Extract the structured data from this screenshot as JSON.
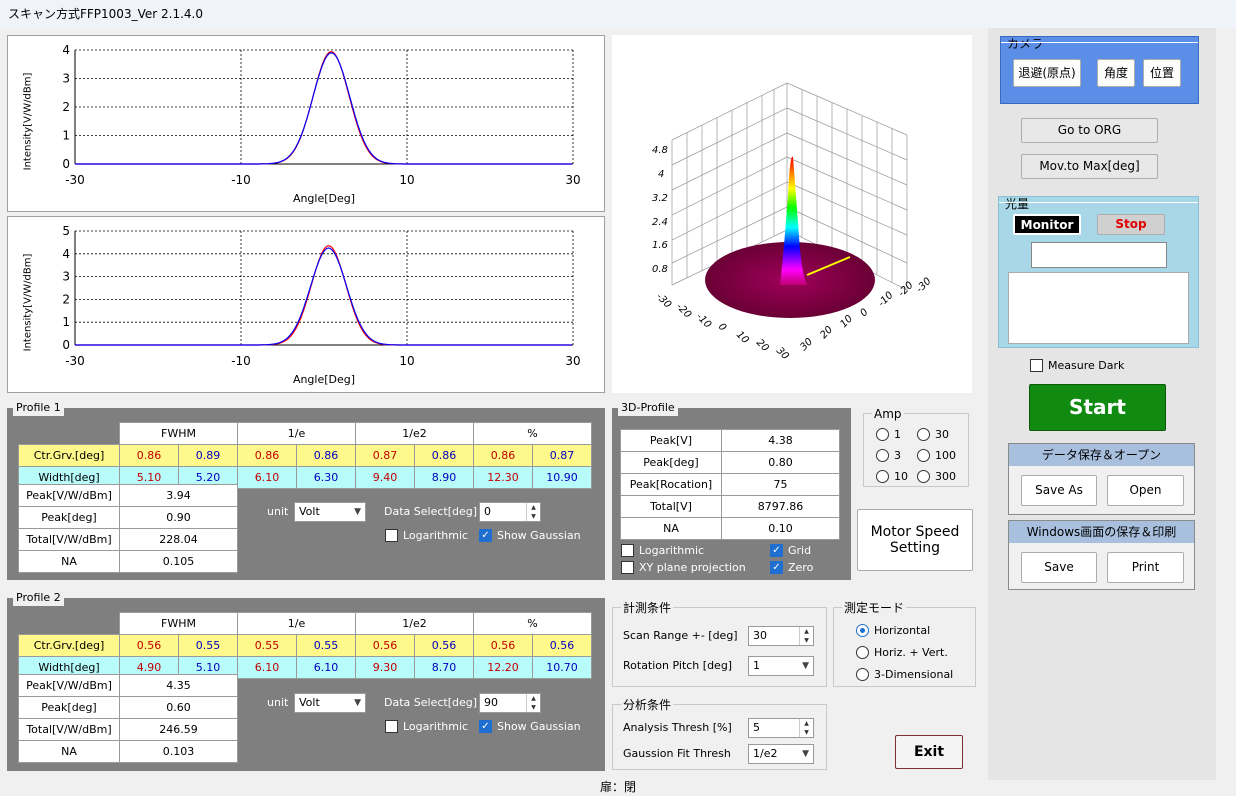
{
  "title": "スキャン方式FFP1003_Ver 2.1.4.0",
  "plot1": {
    "ylabel": "Intensity[V/W/dBm]",
    "xlabel": "Angle[Deg]",
    "xticks": [
      "-30",
      "-10",
      "10",
      "30"
    ],
    "yticks": [
      "4",
      "3",
      "2",
      "1",
      "0"
    ]
  },
  "plot2": {
    "ylabel": "Intensity[V/W/dBm]",
    "xlabel": "Angle[Deg]",
    "xticks": [
      "-30",
      "-10",
      "10",
      "30"
    ],
    "yticks": [
      "5",
      "4",
      "3",
      "2",
      "1",
      "0"
    ]
  },
  "chart_data": [
    {
      "type": "line",
      "ylabel": "Intensity[V/W/dBm]",
      "xlabel": "Angle[Deg]",
      "xlim": [
        -30,
        30
      ],
      "ylim": [
        0,
        4
      ],
      "series": [
        {
          "color": "#ff0000",
          "center": 0.86,
          "peak": 3.94,
          "fwhm": 5.1
        },
        {
          "color": "#0000ff",
          "center": 0.89,
          "peak": 3.9,
          "fwhm": 5.2
        }
      ]
    },
    {
      "type": "line",
      "ylabel": "Intensity[V/W/dBm]",
      "xlabel": "Angle[Deg]",
      "xlim": [
        -30,
        30
      ],
      "ylim": [
        0,
        5
      ],
      "series": [
        {
          "color": "#ff0000",
          "center": 0.56,
          "peak": 4.35,
          "fwhm": 4.9
        },
        {
          "color": "#0000ff",
          "center": 0.55,
          "peak": 4.25,
          "fwhm": 5.1
        }
      ]
    }
  ],
  "plot3d": {
    "zticks": [
      "4.8",
      "4",
      "3.2",
      "2.4",
      "1.6",
      "0.8"
    ],
    "xticks": [
      "-30",
      "-20",
      "-10",
      "0",
      "10",
      "20",
      "30"
    ],
    "yticks": [
      "-30",
      "-20",
      "-10",
      "0",
      "10",
      "20",
      "30"
    ]
  },
  "profile1": {
    "title": "Profile 1",
    "headers": [
      "FWHM",
      "1/e",
      "1/e2",
      "%"
    ],
    "ctr_label": "Ctr.Grv.[deg]",
    "ctr": [
      "0.86",
      "0.89",
      "0.86",
      "0.86",
      "0.87",
      "0.86",
      "0.86",
      "0.87"
    ],
    "width_label": "Width[deg]",
    "width": [
      "5.10",
      "5.20",
      "6.10",
      "6.30",
      "9.40",
      "8.90",
      "12.30",
      "10.90"
    ],
    "rows": [
      {
        "label": "Peak[V/W/dBm]",
        "value": "3.94"
      },
      {
        "label": "Peak[deg]",
        "value": "0.90"
      },
      {
        "label": "Total[V/W/dBm]",
        "value": "228.04"
      },
      {
        "label": "NA",
        "value": "0.105"
      }
    ],
    "unit_label": "unit",
    "unit": "Volt",
    "data_select_label": "Data Select[deg]",
    "data_select": "0",
    "log_label": "Logarithmic",
    "gauss_label": "Show Gaussian"
  },
  "profile2": {
    "title": "Profile 2",
    "headers": [
      "FWHM",
      "1/e",
      "1/e2",
      "%"
    ],
    "ctr_label": "Ctr.Grv.[deg]",
    "ctr": [
      "0.56",
      "0.55",
      "0.55",
      "0.55",
      "0.56",
      "0.56",
      "0.56",
      "0.56"
    ],
    "width_label": "Width[deg]",
    "width": [
      "4.90",
      "5.10",
      "6.10",
      "6.10",
      "9.30",
      "8.70",
      "12.20",
      "10.70"
    ],
    "rows": [
      {
        "label": "Peak[V/W/dBm]",
        "value": "4.35"
      },
      {
        "label": "Peak[deg]",
        "value": "0.60"
      },
      {
        "label": "Total[V/W/dBm]",
        "value": "246.59"
      },
      {
        "label": "NA",
        "value": "0.103"
      }
    ],
    "unit_label": "unit",
    "unit": "Volt",
    "data_select_label": "Data Select[deg]",
    "data_select": "90",
    "log_label": "Logarithmic",
    "gauss_label": "Show Gaussian"
  },
  "profile3d": {
    "title": "3D-Profile",
    "rows": [
      {
        "label": "Peak[V]",
        "value": "4.38"
      },
      {
        "label": "Peak[deg]",
        "value": "0.80"
      },
      {
        "label": "Peak[Rocation]",
        "value": "75"
      },
      {
        "label": "Total[V]",
        "value": "8797.86"
      },
      {
        "label": "NA",
        "value": "0.10"
      }
    ],
    "log_label": "Logarithmic",
    "xy_label": "XY plane projection",
    "grid_label": "Grid",
    "zero_label": "Zero"
  },
  "amp": {
    "title": "Amp",
    "options": [
      "1",
      "30",
      "3",
      "100",
      "10",
      "300"
    ]
  },
  "motor_btn": "Motor Speed Setting",
  "measure": {
    "title": "計測条件",
    "scan_label": "Scan Range +-  [deg]",
    "scan": "30",
    "pitch_label": "Rotation Pitch  [deg]",
    "pitch": "1"
  },
  "mode": {
    "title": "測定モード",
    "options": [
      "Horizontal",
      "Horiz. + Vert.",
      "3-Dimensional"
    ]
  },
  "analysis": {
    "title": "分析条件",
    "thresh_label": "Analysis Thresh  [%]",
    "thresh": "5",
    "fit_label": "Gaussion Fit Thresh",
    "fit": "1/e2"
  },
  "exit": "Exit",
  "status": "扉：閉",
  "camera": {
    "title": "カメラ",
    "btn1": "退避(原点)",
    "btn2": "角度",
    "btn3": "位置"
  },
  "goto_org": "Go to ORG",
  "mov_max": "Mov.to Max[deg]",
  "light": {
    "title": "光量",
    "monitor": "Monitor",
    "stop": "Stop"
  },
  "measure_dark": "Measure Dark",
  "start": "Start",
  "save_group": {
    "title": "データ保存＆オープン",
    "save_as": "Save As",
    "open": "Open"
  },
  "win_group": {
    "title": "Windows画面の保存＆印刷",
    "save": "Save",
    "print": "Print"
  }
}
